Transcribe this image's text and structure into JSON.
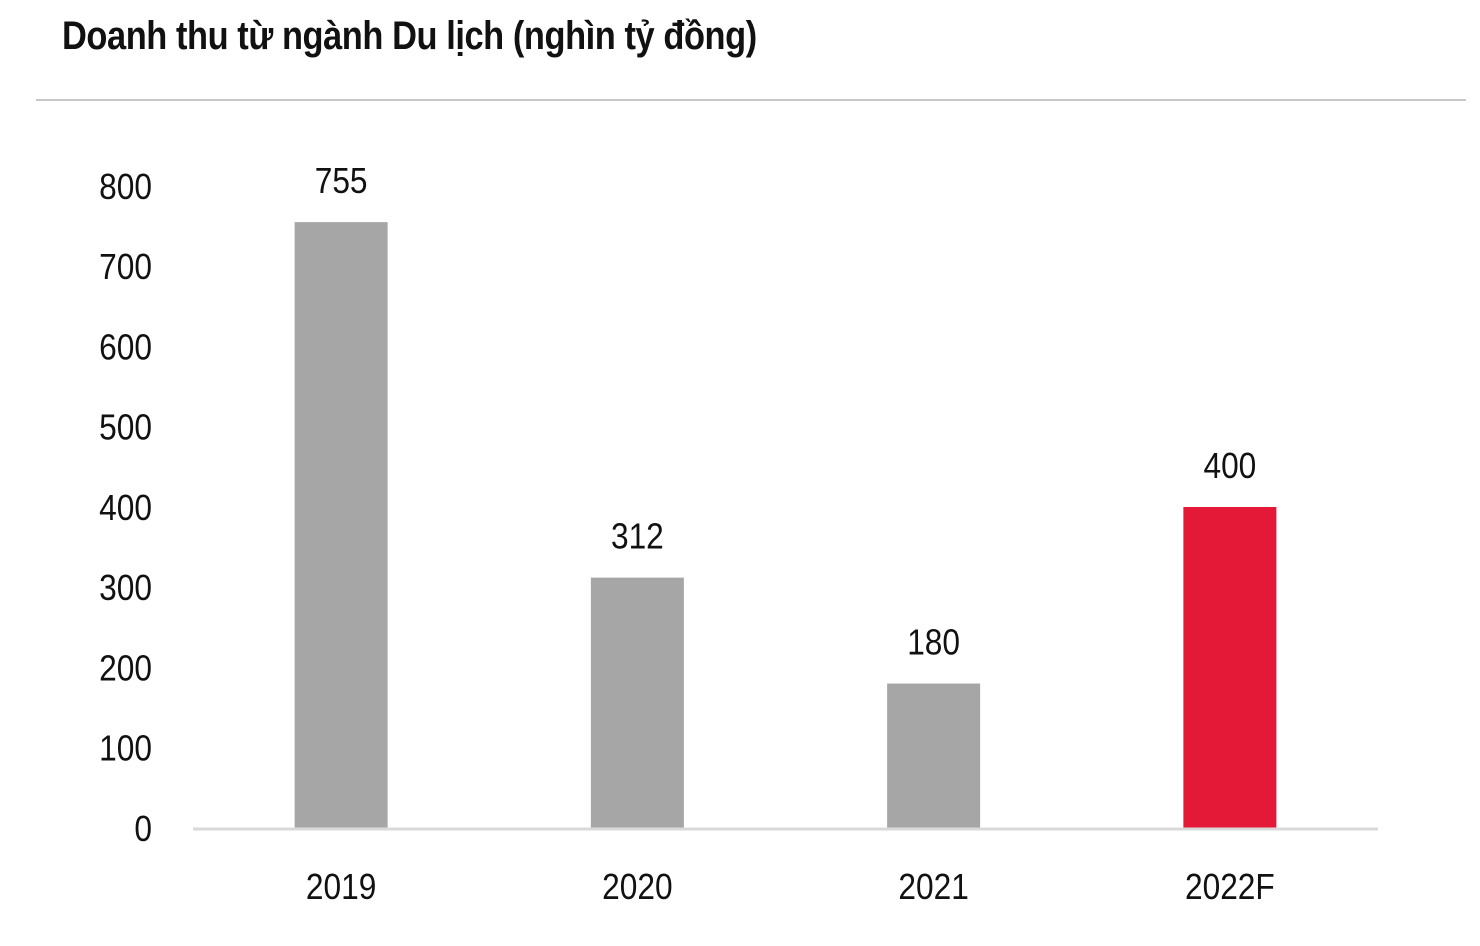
{
  "chart_data": {
    "type": "bar",
    "title": "Doanh thu từ ngành Du lịch (nghìn tỷ đồng)",
    "categories": [
      "2019",
      "2020",
      "2021",
      "2022F"
    ],
    "values": [
      755,
      312,
      180,
      400
    ],
    "data_labels": [
      "755",
      "312",
      "180",
      "400"
    ],
    "yticks": [
      "0",
      "100",
      "200",
      "300",
      "400",
      "500",
      "600",
      "700",
      "800"
    ],
    "ylim": [
      0,
      800
    ],
    "grid": false,
    "legend": "none",
    "colors": {
      "actual": "#a6a6a6",
      "forecast": "#e31937",
      "axis": "#d9d9d9",
      "text": "#111111"
    },
    "forecast_index": 3
  }
}
